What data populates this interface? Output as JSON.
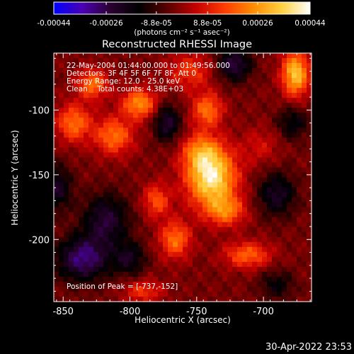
{
  "colorbar": {
    "tick_labels": [
      "-0.00044",
      "-0.00026",
      "-8.8e-05",
      "8.8e-05",
      "0.00026",
      "0.00044"
    ],
    "tick_values": [
      -0.00044,
      -0.00026,
      -8.8e-05,
      8.8e-05,
      0.00026,
      0.00044
    ],
    "range": [
      -0.00044,
      0.00044
    ],
    "unit_label": "(photons cm⁻² s⁻¹ asec⁻²)",
    "colors": [
      "#0000ff",
      "#4b00b4",
      "#2a0030",
      "#000000",
      "#5a0000",
      "#c40000",
      "#ff3c00",
      "#ff8c00",
      "#ffd040",
      "#ffffff"
    ]
  },
  "chart_data": {
    "type": "heatmap",
    "title": "Reconstructed RHESSI Image",
    "xlabel": "Heliocentric X (arcsec)",
    "ylabel": "Heliocentric Y (arcsec)",
    "xlim": [
      -857,
      -664
    ],
    "ylim": [
      -248,
      -56
    ],
    "x_ticks": [
      -850,
      -800,
      -750,
      -700
    ],
    "y_ticks": [
      -100,
      -150,
      -200
    ],
    "x_tick_labels": [
      "-850",
      "-800",
      "-750",
      "-700"
    ],
    "y_tick_labels": [
      "-100",
      "-150",
      "-200"
    ],
    "peak": [
      -737,
      -152
    ],
    "sources": [
      {
        "x": -739,
        "y": -152,
        "amp": 1.0,
        "sx": 13,
        "sy": 16
      },
      {
        "x": -747,
        "y": -132,
        "amp": 0.45,
        "sx": 10,
        "sy": 10
      },
      {
        "x": -728,
        "y": -178,
        "amp": 0.5,
        "sx": 10,
        "sy": 8
      },
      {
        "x": -793,
        "y": -95,
        "amp": 0.65,
        "sx": 9,
        "sy": 8
      },
      {
        "x": -812,
        "y": -120,
        "amp": 0.55,
        "sx": 10,
        "sy": 10
      },
      {
        "x": -842,
        "y": -110,
        "amp": 0.55,
        "sx": 9,
        "sy": 10
      },
      {
        "x": -828,
        "y": -80,
        "amp": 0.55,
        "sx": 8,
        "sy": 8
      },
      {
        "x": -755,
        "y": -70,
        "amp": 0.35,
        "sx": 12,
        "sy": 10
      },
      {
        "x": -742,
        "y": -100,
        "amp": 0.55,
        "sx": 8,
        "sy": 9
      },
      {
        "x": -676,
        "y": -72,
        "amp": 0.85,
        "sx": 7,
        "sy": 12
      },
      {
        "x": -780,
        "y": -170,
        "amp": 0.45,
        "sx": 7,
        "sy": 9
      },
      {
        "x": -712,
        "y": -212,
        "amp": 0.5,
        "sx": 12,
        "sy": 7
      },
      {
        "x": -766,
        "y": -200,
        "amp": 0.55,
        "sx": 8,
        "sy": 10
      },
      {
        "x": -790,
        "y": -240,
        "amp": 0.35,
        "sx": 10,
        "sy": 6
      },
      {
        "x": -702,
        "y": -128,
        "amp": 0.2,
        "sx": 10,
        "sy": 10
      },
      {
        "x": -690,
        "y": -165,
        "amp": -0.45,
        "sx": 10,
        "sy": 12
      },
      {
        "x": -818,
        "y": -185,
        "amp": -0.5,
        "sx": 12,
        "sy": 14
      },
      {
        "x": -835,
        "y": -215,
        "amp": -0.65,
        "sx": 14,
        "sy": 12
      },
      {
        "x": -772,
        "y": -110,
        "amp": -0.5,
        "sx": 7,
        "sy": 10
      },
      {
        "x": -722,
        "y": -65,
        "amp": -0.55,
        "sx": 9,
        "sy": 9
      },
      {
        "x": -678,
        "y": -110,
        "amp": -0.35,
        "sx": 8,
        "sy": 9
      },
      {
        "x": -855,
        "y": -160,
        "amp": -0.45,
        "sx": 8,
        "sy": 12
      },
      {
        "x": -800,
        "y": -215,
        "amp": -0.4,
        "sx": 8,
        "sy": 9
      },
      {
        "x": -690,
        "y": -235,
        "amp": -0.3,
        "sx": 9,
        "sy": 8
      }
    ]
  },
  "annotations": {
    "time_range": "22-May-2004 01:44:00.000 to 01:49:56.000",
    "detectors": "Detectors: 3F 4F 5F 6F 7F 8F, Att 0",
    "energy": "Energy Range: 12.0 - 25.0 keV",
    "clean": "Clean    Total counts: 4.38E+03",
    "peak_label": "Position of Peak = [-737,-152]"
  },
  "footer": {
    "timestamp": "30-Apr-2022 23:53"
  }
}
